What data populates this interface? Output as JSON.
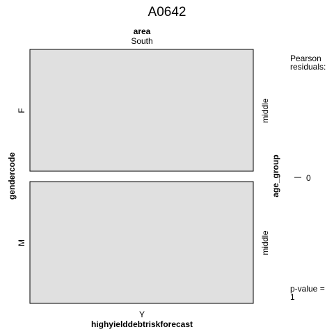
{
  "chart_data": {
    "type": "mosaic",
    "title": "A0642",
    "top_variable": {
      "name": "area",
      "levels": [
        "South"
      ]
    },
    "left_variable": {
      "name": "gendercode",
      "levels": [
        "F",
        "M"
      ]
    },
    "right_variable": {
      "name": "age_group",
      "levels": [
        "middle",
        "middle"
      ]
    },
    "bottom_variable": {
      "name": "highyielddebtriskforecast",
      "levels": [
        "Y"
      ]
    },
    "cells": [
      {
        "gendercode": "F",
        "age_group": "middle",
        "area": "South",
        "highyielddebtriskforecast": "Y",
        "proportion": 0.5,
        "residual": 0
      },
      {
        "gendercode": "M",
        "age_group": "middle",
        "area": "South",
        "highyielddebtriskforecast": "Y",
        "proportion": 0.5,
        "residual": 0
      }
    ],
    "legend": {
      "title_line1": "Pearson",
      "title_line2": "residuals:",
      "tick_label": "0",
      "pvalue_line1": "p-value =",
      "pvalue_line2": "1"
    },
    "cell_fill": "#e0e0e0",
    "cell_border": "#000000"
  }
}
